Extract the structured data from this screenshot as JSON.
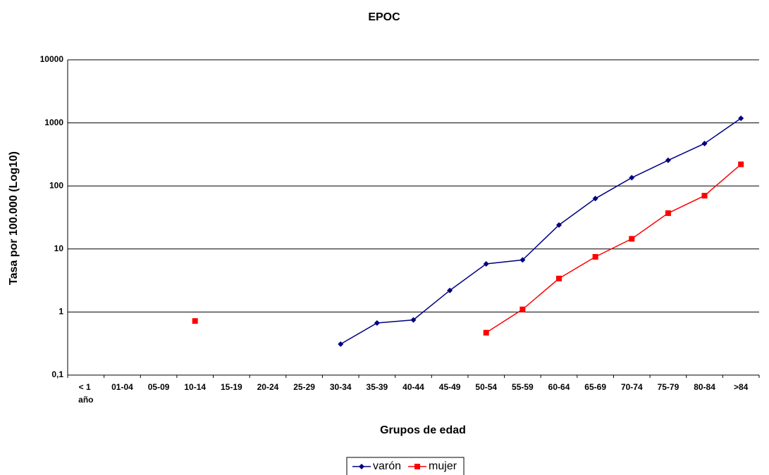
{
  "chart_data": {
    "type": "line",
    "title": "EPOC",
    "x_label": "Grupos de edad",
    "y_label": "Tasa por 100.000 (Log10)",
    "categories": [
      "< 1 año",
      "01-04",
      "05-09",
      "10-14",
      "15-19",
      "20-24",
      "25-29",
      "30-34",
      "35-39",
      "40-44",
      "45-49",
      "50-54",
      "55-59",
      "60-64",
      "65-69",
      "70-74",
      "75-79",
      "80-84",
      ">84"
    ],
    "series": [
      {
        "name": "varón",
        "color": "#000080",
        "marker": "diamond",
        "values": [
          null,
          null,
          null,
          null,
          null,
          null,
          null,
          0.31,
          0.67,
          0.75,
          2.2,
          5.8,
          6.7,
          24,
          63,
          135,
          255,
          470,
          1180
        ]
      },
      {
        "name": "mujer",
        "color": "#ff0000",
        "marker": "square",
        "values": [
          null,
          null,
          null,
          0.72,
          null,
          null,
          null,
          null,
          null,
          null,
          null,
          0.47,
          1.1,
          3.4,
          7.5,
          14.5,
          37,
          70,
          220
        ]
      }
    ],
    "log_scale": true,
    "ylim": [
      0.1,
      10000
    ],
    "yticks": [
      {
        "value": 0.1,
        "label": "0,1"
      },
      1,
      10,
      100,
      1000,
      10000
    ],
    "grid": true,
    "legend": "bottom"
  }
}
